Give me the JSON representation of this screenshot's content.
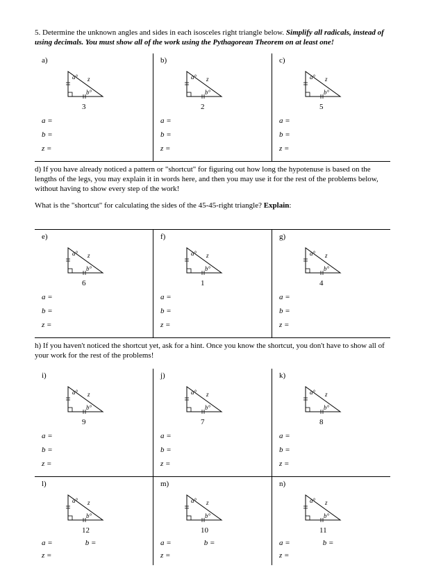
{
  "question": {
    "number": "5.",
    "text_plain": "Determine the unknown angles and sides in each isosceles right triangle below.  ",
    "text_bold_ital": "Simplify all radicals, instead of using decimals.  You must show all of the work using the Pythagorean Theorem on at least one!"
  },
  "triangle_labels": {
    "a": "a°",
    "b": "b°",
    "z": "z"
  },
  "answer_labels": {
    "a": "a =",
    "b": "b =",
    "z": "z ="
  },
  "note_d": {
    "label": "d)",
    "text": "If you have already noticed a pattern or \"shortcut\" for figuring out how long the hypotenuse is based on the lengths of the legs, you may explain it in words here, and then you may use it for the rest of the problems below, without having to show every step of the work!",
    "prompt_pre": "What is the \"shortcut\" for calculating the sides of the 45-45-right triangle?  ",
    "prompt_bold": "Explain",
    "prompt_post": ":"
  },
  "note_h": {
    "label": "h)",
    "text": "If you haven't noticed the shortcut yet, ask for a hint.  Once you know the shortcut, you don't have to show all of your work for the rest of the problems!"
  },
  "rows": [
    {
      "cells": [
        {
          "label": "a)",
          "base": "3"
        },
        {
          "label": "b)",
          "base": "2"
        },
        {
          "label": "c)",
          "base": "5"
        }
      ],
      "style": "full"
    },
    {
      "cells": [
        {
          "label": "e)",
          "base": "6"
        },
        {
          "label": "f)",
          "base": "1"
        },
        {
          "label": "g)",
          "base": "4"
        }
      ],
      "style": "full"
    },
    {
      "cells": [
        {
          "label": "i)",
          "base": "9"
        },
        {
          "label": "j)",
          "base": "7"
        },
        {
          "label": "k)",
          "base": "8"
        }
      ],
      "style": "full"
    },
    {
      "cells": [
        {
          "label": "l)",
          "base": "12"
        },
        {
          "label": "m)",
          "base": "10"
        },
        {
          "label": "n)",
          "base": "11"
        }
      ],
      "style": "compact"
    }
  ]
}
